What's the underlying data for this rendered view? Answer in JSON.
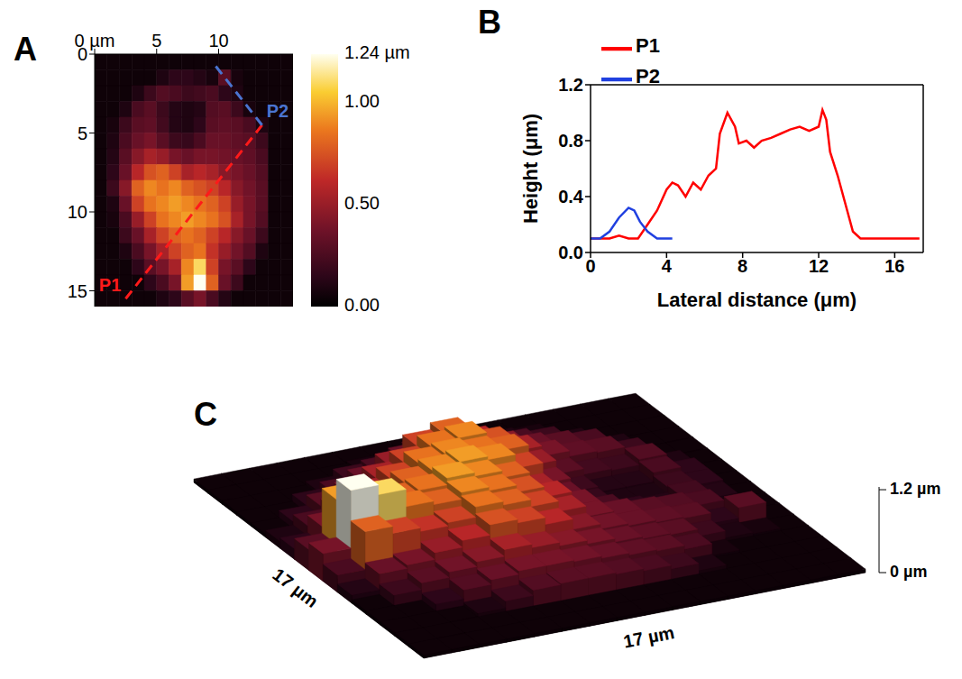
{
  "chart_data": [
    {
      "panel": "A",
      "type": "heatmap",
      "xlim": [
        0,
        16
      ],
      "ylim": [
        0,
        16
      ],
      "xticks": [
        {
          "value": 0,
          "label": "0 µm"
        },
        5,
        10
      ],
      "yticks": [
        0,
        5,
        10,
        15
      ],
      "cells": [
        [
          0.05,
          0.05,
          0.05,
          0.05,
          0.05,
          0.05,
          0.05,
          0.05,
          0.05,
          0.05,
          0.05,
          0.05,
          0.05,
          0.05,
          0.05,
          0.05
        ],
        [
          0.05,
          0.05,
          0.05,
          0.05,
          0.05,
          0.1,
          0.15,
          0.15,
          0.12,
          0.08,
          0.3,
          0.08,
          0.05,
          0.05,
          0.05,
          0.05
        ],
        [
          0.05,
          0.05,
          0.05,
          0.1,
          0.2,
          0.28,
          0.25,
          0.2,
          0.22,
          0.25,
          0.15,
          0.1,
          0.05,
          0.05,
          0.05,
          0.05
        ],
        [
          0.05,
          0.05,
          0.1,
          0.25,
          0.3,
          0.2,
          0.12,
          0.1,
          0.12,
          0.28,
          0.3,
          0.2,
          0.08,
          0.05,
          0.05,
          0.05
        ],
        [
          0.05,
          0.08,
          0.2,
          0.3,
          0.32,
          0.22,
          0.12,
          0.1,
          0.15,
          0.3,
          0.32,
          0.3,
          0.25,
          0.1,
          0.05,
          0.05
        ],
        [
          0.05,
          0.1,
          0.25,
          0.35,
          0.4,
          0.3,
          0.2,
          0.18,
          0.25,
          0.35,
          0.35,
          0.32,
          0.3,
          0.2,
          0.05,
          0.05
        ],
        [
          0.05,
          0.12,
          0.3,
          0.45,
          0.55,
          0.5,
          0.4,
          0.35,
          0.4,
          0.4,
          0.38,
          0.35,
          0.32,
          0.25,
          0.05,
          0.05
        ],
        [
          0.05,
          0.15,
          0.35,
          0.6,
          0.75,
          0.8,
          0.7,
          0.55,
          0.6,
          0.55,
          0.45,
          0.4,
          0.35,
          0.28,
          0.05,
          0.05
        ],
        [
          0.05,
          0.2,
          0.45,
          0.8,
          0.9,
          0.85,
          0.9,
          0.8,
          0.75,
          0.7,
          0.6,
          0.45,
          0.38,
          0.3,
          0.05,
          0.05
        ],
        [
          0.05,
          0.1,
          0.35,
          0.7,
          0.85,
          0.9,
          0.95,
          0.9,
          0.85,
          0.8,
          0.7,
          0.5,
          0.4,
          0.3,
          0.05,
          0.05
        ],
        [
          0.05,
          0.08,
          0.25,
          0.5,
          0.7,
          0.85,
          0.9,
          0.95,
          0.9,
          0.85,
          0.75,
          0.55,
          0.4,
          0.28,
          0.05,
          0.05
        ],
        [
          0.05,
          0.05,
          0.2,
          0.35,
          0.55,
          0.7,
          0.8,
          0.85,
          0.8,
          0.7,
          0.6,
          0.45,
          0.35,
          0.2,
          0.05,
          0.05
        ],
        [
          0.05,
          0.05,
          0.1,
          0.25,
          0.4,
          0.55,
          0.7,
          0.8,
          0.85,
          0.65,
          0.5,
          0.38,
          0.28,
          0.1,
          0.05,
          0.05
        ],
        [
          0.05,
          0.05,
          0.05,
          0.15,
          0.3,
          0.4,
          0.55,
          0.9,
          1.1,
          0.7,
          0.4,
          0.3,
          0.15,
          0.05,
          0.05,
          0.05
        ],
        [
          0.05,
          0.05,
          0.05,
          0.05,
          0.15,
          0.25,
          0.4,
          0.95,
          1.24,
          0.8,
          0.35,
          0.2,
          0.05,
          0.05,
          0.05,
          0.05
        ],
        [
          0.05,
          0.05,
          0.05,
          0.05,
          0.05,
          0.1,
          0.15,
          0.3,
          0.4,
          0.25,
          0.12,
          0.05,
          0.05,
          0.05,
          0.05,
          0.05
        ]
      ],
      "colorbar": {
        "range": [
          0,
          1.24
        ],
        "ticks": [
          {
            "value": 0,
            "label": "0.00"
          },
          {
            "value": 0.5,
            "label": "0.50"
          },
          {
            "value": 1,
            "label": "1.00"
          },
          {
            "value": 1.24,
            "label": "1.24 µm"
          }
        ]
      },
      "annotations": [
        {
          "text": "P1",
          "color": "#ff1a1a",
          "line_style": "dashed",
          "from": [
            2.5,
            15.5
          ],
          "to": [
            13.5,
            4.5
          ]
        },
        {
          "text": "P2",
          "color": "#4a74d0",
          "line_style": "dashed",
          "from": [
            13.5,
            4.5
          ],
          "to": [
            9.5,
            0.5
          ]
        }
      ]
    },
    {
      "panel": "B",
      "type": "line",
      "xlabel": "Lateral distance (μm)",
      "ylabel": "Height (μm)",
      "xlim": [
        0,
        17.5
      ],
      "ylim": [
        0,
        1.2
      ],
      "xticks": [
        0,
        4,
        8,
        12,
        16
      ],
      "yticks": [
        {
          "value": 0,
          "label": "0.0"
        },
        0.4,
        0.8,
        1.2
      ],
      "legend": "upper left",
      "series": [
        {
          "name": "P1",
          "color": "#ff0000",
          "x": [
            0,
            1,
            1.5,
            2,
            2.5,
            3,
            3.5,
            4,
            4.3,
            4.6,
            5,
            5.4,
            5.8,
            6.2,
            6.6,
            6.8,
            7.2,
            7.6,
            7.8,
            8.2,
            8.6,
            9,
            9.5,
            10,
            10.5,
            11,
            11.5,
            12,
            12.2,
            12.4,
            12.6,
            13,
            13.4,
            13.8,
            14.2,
            15,
            16,
            17.3
          ],
          "values": [
            0.1,
            0.1,
            0.12,
            0.1,
            0.1,
            0.2,
            0.3,
            0.45,
            0.5,
            0.48,
            0.4,
            0.5,
            0.45,
            0.55,
            0.6,
            0.85,
            1,
            0.9,
            0.78,
            0.8,
            0.75,
            0.8,
            0.82,
            0.85,
            0.88,
            0.9,
            0.87,
            0.9,
            1.02,
            0.95,
            0.72,
            0.55,
            0.35,
            0.15,
            0.1,
            0.1,
            0.1,
            0.1
          ]
        },
        {
          "name": "P2",
          "color": "#2040e0",
          "x": [
            0,
            0.5,
            1,
            1.5,
            2,
            2.3,
            2.6,
            3,
            3.5,
            4.3
          ],
          "values": [
            0.1,
            0.1,
            0.15,
            0.25,
            0.32,
            0.3,
            0.22,
            0.15,
            0.1,
            0.1
          ]
        }
      ]
    },
    {
      "panel": "C",
      "type": "surface",
      "xlabel": "17 µm",
      "ylabel": "17 µm",
      "xlim": [
        0,
        17
      ],
      "ylim": [
        0,
        17
      ],
      "zlim": [
        0,
        1.24
      ],
      "zticks": [
        {
          "value": 0,
          "label": "0 µm"
        },
        {
          "value": 1.2,
          "label": "1.2 µm"
        }
      ],
      "cells": [
        [
          0.05,
          0.05,
          0.05,
          0.05,
          0.05,
          0.05,
          0.05,
          0.05,
          0.05,
          0.05,
          0.05,
          0.05,
          0.05,
          0.05,
          0.05,
          0.05
        ],
        [
          0.05,
          0.05,
          0.05,
          0.05,
          0.05,
          0.1,
          0.15,
          0.15,
          0.12,
          0.08,
          0.3,
          0.08,
          0.05,
          0.05,
          0.05,
          0.05
        ],
        [
          0.05,
          0.05,
          0.05,
          0.1,
          0.2,
          0.28,
          0.25,
          0.2,
          0.22,
          0.25,
          0.15,
          0.1,
          0.05,
          0.05,
          0.05,
          0.05
        ],
        [
          0.05,
          0.05,
          0.1,
          0.25,
          0.3,
          0.2,
          0.12,
          0.1,
          0.12,
          0.28,
          0.3,
          0.2,
          0.08,
          0.05,
          0.05,
          0.05
        ],
        [
          0.05,
          0.08,
          0.2,
          0.3,
          0.32,
          0.22,
          0.12,
          0.1,
          0.15,
          0.3,
          0.32,
          0.3,
          0.25,
          0.1,
          0.05,
          0.05
        ],
        [
          0.05,
          0.1,
          0.25,
          0.35,
          0.4,
          0.3,
          0.2,
          0.18,
          0.25,
          0.35,
          0.35,
          0.32,
          0.3,
          0.2,
          0.05,
          0.05
        ],
        [
          0.05,
          0.12,
          0.3,
          0.45,
          0.55,
          0.5,
          0.4,
          0.35,
          0.4,
          0.4,
          0.38,
          0.35,
          0.32,
          0.25,
          0.05,
          0.05
        ],
        [
          0.05,
          0.15,
          0.35,
          0.6,
          0.75,
          0.8,
          0.7,
          0.55,
          0.6,
          0.55,
          0.45,
          0.4,
          0.35,
          0.28,
          0.05,
          0.05
        ],
        [
          0.05,
          0.2,
          0.45,
          0.8,
          0.9,
          0.85,
          0.9,
          0.8,
          0.75,
          0.7,
          0.6,
          0.45,
          0.38,
          0.3,
          0.05,
          0.05
        ],
        [
          0.05,
          0.1,
          0.35,
          0.7,
          0.85,
          0.9,
          0.95,
          0.9,
          0.85,
          0.8,
          0.7,
          0.5,
          0.4,
          0.3,
          0.05,
          0.05
        ],
        [
          0.05,
          0.08,
          0.25,
          0.5,
          0.7,
          0.85,
          0.9,
          0.95,
          0.9,
          0.85,
          0.75,
          0.55,
          0.4,
          0.28,
          0.05,
          0.05
        ],
        [
          0.05,
          0.05,
          0.2,
          0.35,
          0.55,
          0.7,
          0.8,
          0.85,
          0.8,
          0.7,
          0.6,
          0.45,
          0.35,
          0.2,
          0.05,
          0.05
        ],
        [
          0.05,
          0.05,
          0.1,
          0.25,
          0.4,
          0.55,
          0.7,
          0.8,
          0.85,
          0.65,
          0.5,
          0.38,
          0.28,
          0.1,
          0.05,
          0.05
        ],
        [
          0.05,
          0.05,
          0.05,
          0.15,
          0.3,
          0.4,
          0.55,
          0.9,
          1.1,
          0.7,
          0.4,
          0.3,
          0.15,
          0.05,
          0.05,
          0.05
        ],
        [
          0.05,
          0.05,
          0.05,
          0.05,
          0.15,
          0.25,
          0.4,
          0.95,
          1.24,
          0.8,
          0.35,
          0.2,
          0.05,
          0.05,
          0.05,
          0.05
        ],
        [
          0.05,
          0.05,
          0.05,
          0.05,
          0.05,
          0.1,
          0.15,
          0.3,
          0.4,
          0.25,
          0.12,
          0.05,
          0.05,
          0.05,
          0.05,
          0.05
        ]
      ]
    }
  ]
}
